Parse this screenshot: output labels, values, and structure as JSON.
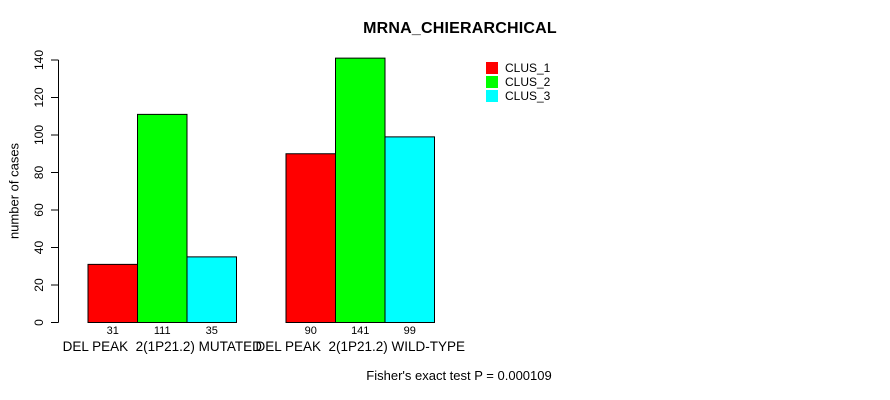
{
  "page": {
    "background": "#ffffff",
    "text_color": "#000000"
  },
  "chart_data": {
    "type": "bar",
    "title": "MRNA_CHIERARCHICAL",
    "xlabel": "",
    "ylabel": "number of cases",
    "categories": [
      "DEL PEAK  2(1P21.2) MUTATED",
      "DEL PEAK  2(1P21.2) WILD-TYPE"
    ],
    "series": [
      {
        "name": "CLUS_1",
        "color": "#ff0000",
        "values": [
          31,
          90
        ]
      },
      {
        "name": "CLUS_2",
        "color": "#00ff00",
        "values": [
          111,
          141
        ]
      },
      {
        "name": "CLUS_3",
        "color": "#00ffff",
        "values": [
          35,
          99
        ]
      }
    ],
    "bar_value_labels": [
      [
        31,
        111,
        35
      ],
      [
        90,
        141,
        99
      ]
    ],
    "ylim": [
      0,
      140
    ],
    "yticks": [
      0,
      20,
      40,
      60,
      80,
      100,
      120,
      140
    ],
    "grid": false,
    "bar_outline_color": "#000000",
    "legend": {
      "position": "top-right",
      "entries": [
        "CLUS_1",
        "CLUS_2",
        "CLUS_3"
      ]
    },
    "annotation": "Fisher's exact test P = 0.000109"
  }
}
